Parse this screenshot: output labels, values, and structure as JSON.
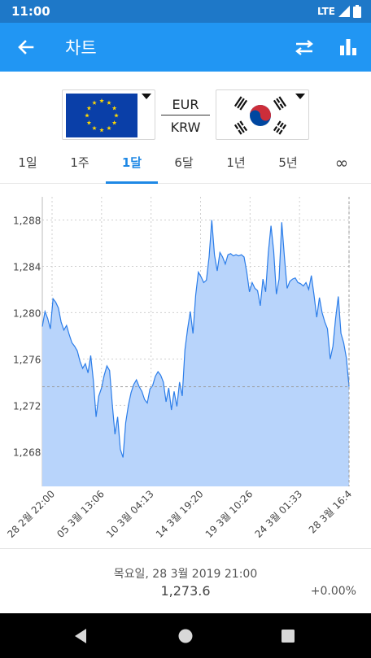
{
  "status": {
    "time": "11:00",
    "network": "LTE"
  },
  "app_bar": {
    "title": "차트"
  },
  "currency": {
    "base": "EUR",
    "quote": "KRW"
  },
  "tabs": [
    {
      "label": "1일",
      "active": false
    },
    {
      "label": "1주",
      "active": false
    },
    {
      "label": "1달",
      "active": true
    },
    {
      "label": "6달",
      "active": false
    },
    {
      "label": "1년",
      "active": false
    },
    {
      "label": "5년",
      "active": false
    },
    {
      "label": "∞",
      "active": false
    }
  ],
  "footer": {
    "date": "목요일, 28 3월 2019 21:00",
    "value": "1,273.6",
    "change": "+0.00%"
  },
  "colors": {
    "accent": "#2196f3",
    "series": "#2b7de9",
    "fill": "#b8d4fb"
  },
  "chart_data": {
    "type": "area",
    "ylim": [
      1265,
      1290
    ],
    "yticks": [
      "1,268",
      "1,272",
      "1,276",
      "1,280",
      "1,284",
      "1,288"
    ],
    "ytick_values": [
      1268,
      1272,
      1276,
      1280,
      1284,
      1288
    ],
    "xticks": [
      "28 2월 22:00",
      "05 3월 13:06",
      "10 3월 04:13",
      "14 3월 19:20",
      "19 3월 10:26",
      "24 3월 01:33",
      "28 3월 16:4"
    ],
    "reference_line": 1273.6,
    "values": [
      1278.8,
      1280.1,
      1279.5,
      1278.6,
      1281.2,
      1280.9,
      1280.4,
      1279.2,
      1278.5,
      1278.9,
      1278.1,
      1277.4,
      1277.1,
      1276.7,
      1275.8,
      1275.2,
      1275.6,
      1274.8,
      1276.3,
      1274.1,
      1271.0,
      1272.8,
      1273.5,
      1274.6,
      1275.4,
      1275.0,
      1272.1,
      1269.5,
      1271.0,
      1268.2,
      1267.5,
      1270.5,
      1272.0,
      1273.1,
      1273.8,
      1274.2,
      1273.6,
      1273.2,
      1272.5,
      1272.2,
      1273.4,
      1273.7,
      1274.5,
      1274.9,
      1274.6,
      1274.0,
      1272.3,
      1273.5,
      1271.6,
      1273.2,
      1271.9,
      1274.0,
      1272.8,
      1276.8,
      1278.6,
      1280.1,
      1278.2,
      1281.5,
      1283.5,
      1283.1,
      1282.6,
      1282.8,
      1284.8,
      1288.0,
      1285.0,
      1283.6,
      1285.2,
      1284.8,
      1284.2,
      1285.0,
      1285.1,
      1284.9,
      1285.0,
      1284.9,
      1285.0,
      1284.8,
      1283.5,
      1281.8,
      1282.6,
      1282.1,
      1281.9,
      1280.6,
      1282.9,
      1281.8,
      1285.2,
      1287.5,
      1285.3,
      1281.6,
      1282.9,
      1287.8,
      1284.8,
      1282.1,
      1282.7,
      1282.9,
      1283.0,
      1282.6,
      1282.5,
      1282.3,
      1282.6,
      1282.0,
      1283.2,
      1281.5,
      1279.6,
      1281.3,
      1280.0,
      1279.2,
      1278.6,
      1276.0,
      1277.1,
      1279.5,
      1281.4,
      1278.2,
      1277.4,
      1276.1,
      1273.6
    ]
  }
}
